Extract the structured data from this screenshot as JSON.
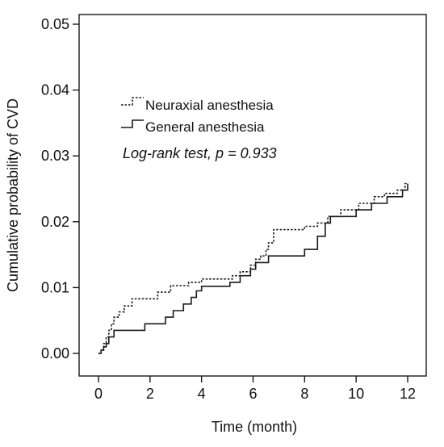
{
  "chart_data": {
    "type": "line",
    "title": "",
    "xlabel": "Time (month)",
    "ylabel": "Cumulative probability of CVD",
    "xlim": [
      0,
      12
    ],
    "ylim": [
      0,
      0.05
    ],
    "x_ticks": [
      0,
      2,
      4,
      6,
      8,
      10,
      12
    ],
    "x_tick_labels": [
      "0",
      "2",
      "4",
      "6",
      "8",
      "10",
      "12"
    ],
    "y_ticks": [
      0,
      0.01,
      0.02,
      0.03,
      0.04,
      0.05
    ],
    "y_tick_labels": [
      "0.00",
      "0.01",
      "0.02",
      "0.03",
      "0.04",
      "0.05"
    ],
    "grid": false,
    "legend_position": "upper-left",
    "annotation": "Log-rank test, p = 0.933",
    "series": [
      {
        "name": "Neuraxial anesthesia",
        "line_style": "dotted",
        "color": "#1a1a1a",
        "points": [
          [
            0.0,
            0.0
          ],
          [
            0.1,
            0.0005
          ],
          [
            0.2,
            0.0015
          ],
          [
            0.3,
            0.0025
          ],
          [
            0.4,
            0.0035
          ],
          [
            0.5,
            0.0045
          ],
          [
            0.6,
            0.0055
          ],
          [
            0.8,
            0.0063
          ],
          [
            1.0,
            0.0072
          ],
          [
            1.3,
            0.0083
          ],
          [
            2.3,
            0.0093
          ],
          [
            2.8,
            0.0103
          ],
          [
            3.5,
            0.0108
          ],
          [
            4.0,
            0.0113
          ],
          [
            5.2,
            0.0118
          ],
          [
            5.5,
            0.0124
          ],
          [
            5.9,
            0.0134
          ],
          [
            6.1,
            0.0143
          ],
          [
            6.3,
            0.0148
          ],
          [
            6.5,
            0.0158
          ],
          [
            6.6,
            0.0168
          ],
          [
            6.8,
            0.0188
          ],
          [
            8.0,
            0.0193
          ],
          [
            8.5,
            0.0198
          ],
          [
            8.9,
            0.0208
          ],
          [
            9.4,
            0.0218
          ],
          [
            10.1,
            0.0228
          ],
          [
            10.7,
            0.0238
          ],
          [
            11.1,
            0.0243
          ],
          [
            11.6,
            0.0248
          ],
          [
            11.9,
            0.0258
          ],
          [
            12.0,
            0.0258
          ]
        ]
      },
      {
        "name": "General anesthesia",
        "line_style": "solid",
        "color": "#1a1a1a",
        "points": [
          [
            0.0,
            0.0
          ],
          [
            0.1,
            0.0005
          ],
          [
            0.2,
            0.001
          ],
          [
            0.3,
            0.0015
          ],
          [
            0.4,
            0.0025
          ],
          [
            0.6,
            0.0035
          ],
          [
            1.8,
            0.0045
          ],
          [
            2.6,
            0.0055
          ],
          [
            2.9,
            0.0065
          ],
          [
            3.3,
            0.0075
          ],
          [
            3.6,
            0.0085
          ],
          [
            3.8,
            0.0095
          ],
          [
            4.0,
            0.0102
          ],
          [
            5.1,
            0.0108
          ],
          [
            5.5,
            0.0118
          ],
          [
            5.9,
            0.0128
          ],
          [
            6.1,
            0.0138
          ],
          [
            6.6,
            0.0148
          ],
          [
            7.2,
            0.0148
          ],
          [
            8.0,
            0.0158
          ],
          [
            8.5,
            0.0178
          ],
          [
            8.8,
            0.0198
          ],
          [
            9.0,
            0.0208
          ],
          [
            10.0,
            0.0218
          ],
          [
            10.6,
            0.0228
          ],
          [
            11.2,
            0.0238
          ],
          [
            11.8,
            0.0248
          ],
          [
            12.0,
            0.0258
          ]
        ]
      }
    ]
  }
}
